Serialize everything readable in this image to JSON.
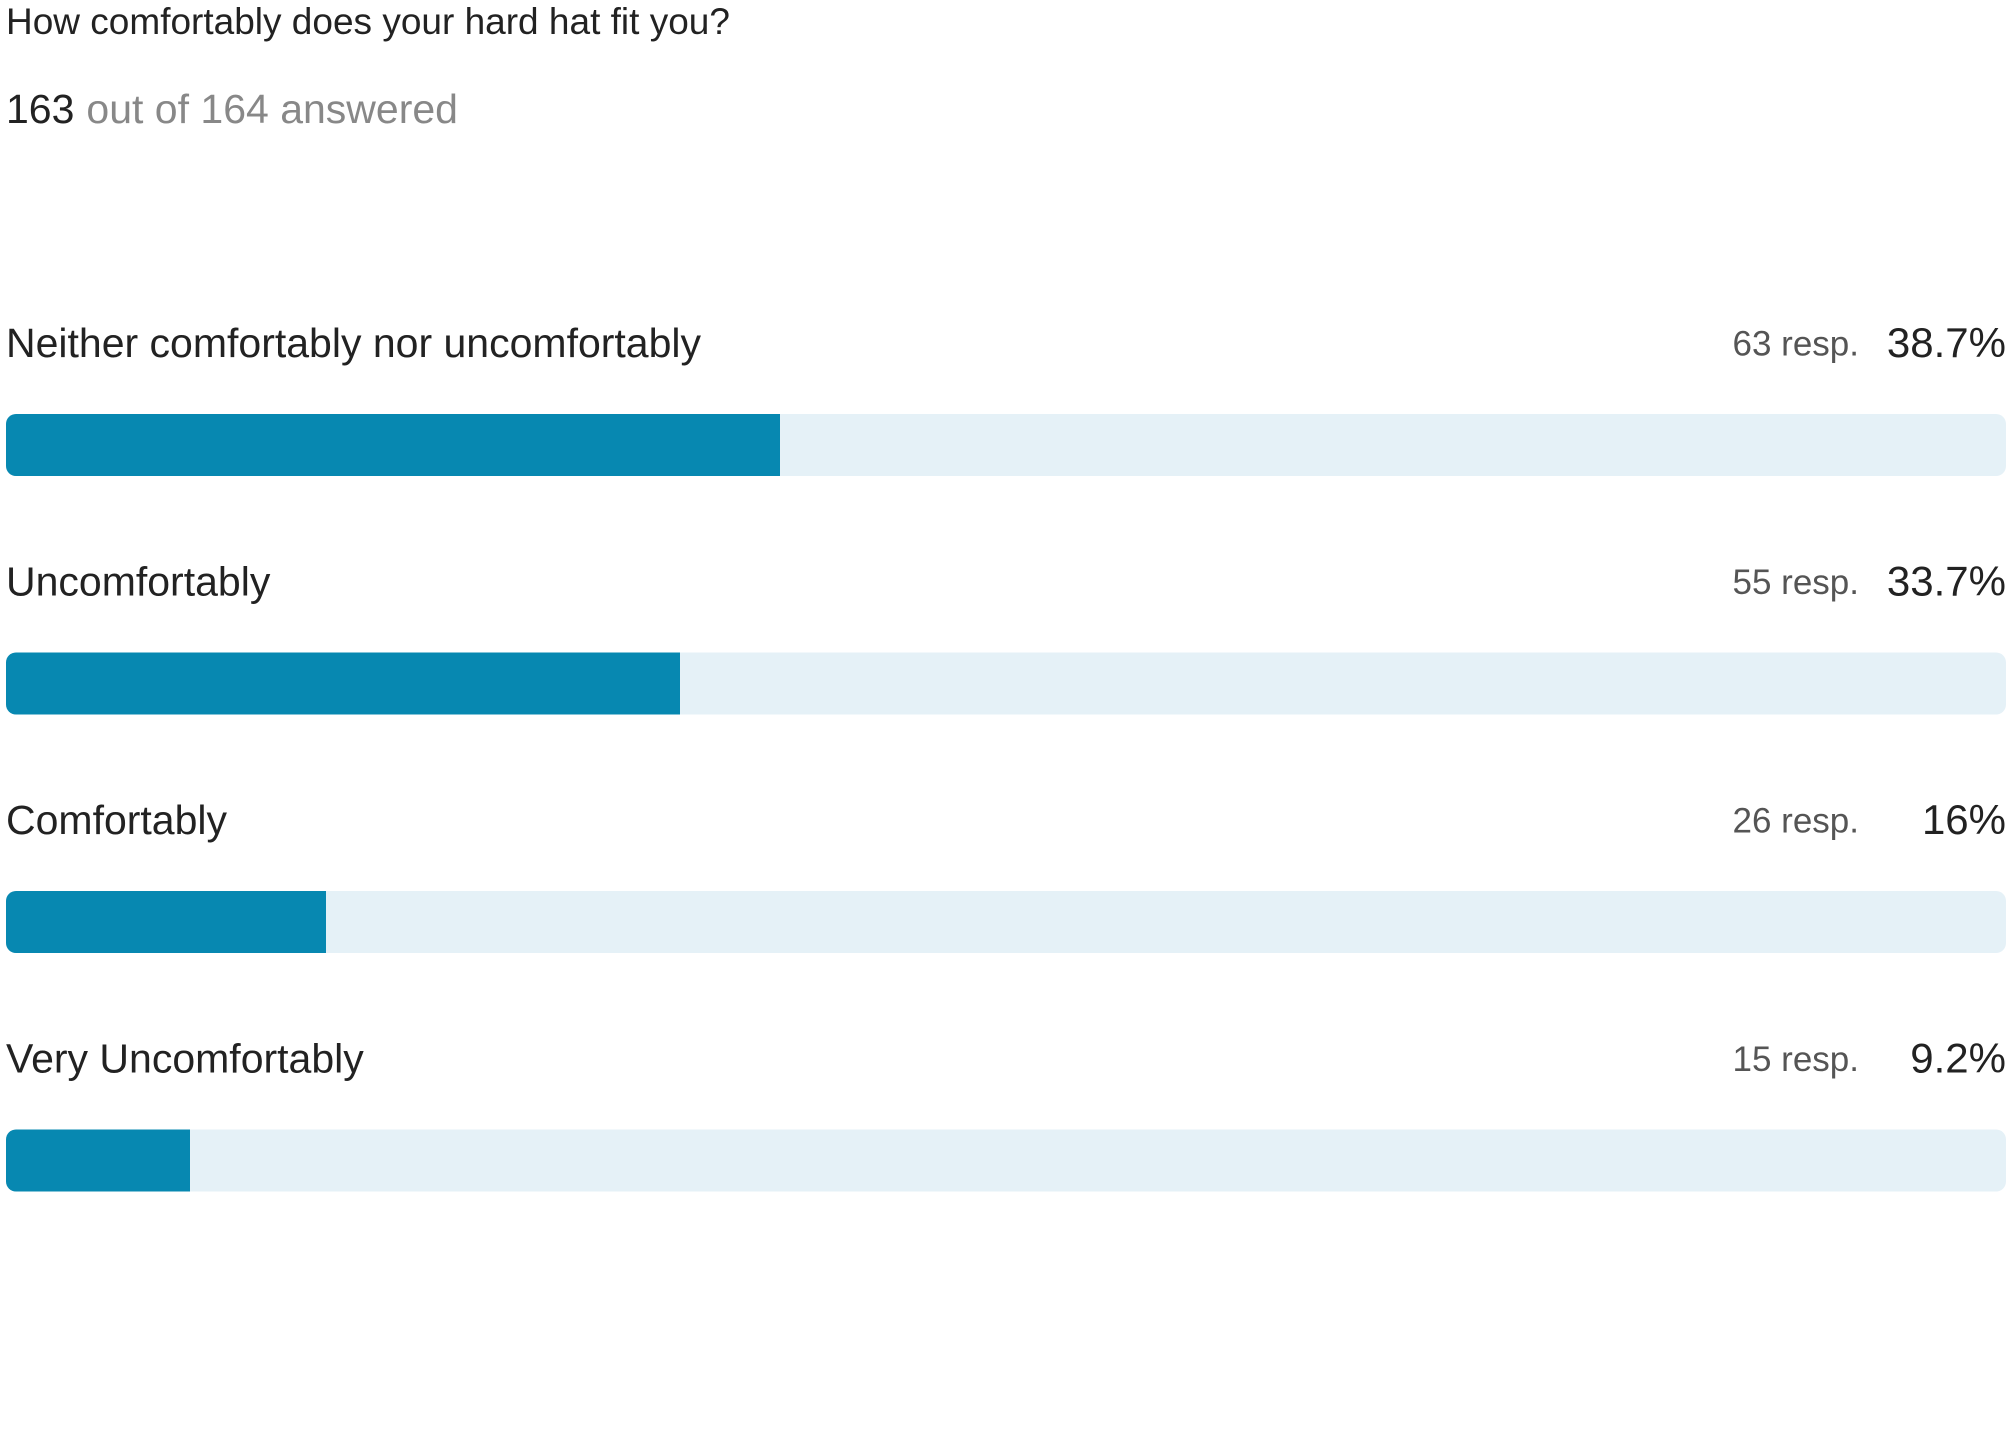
{
  "chart_data": {
    "type": "bar",
    "orientation": "horizontal",
    "title": "How comfortably does your hard hat fit you?",
    "answered": 163,
    "subtitle": "out of 164 answered",
    "categories": [
      "Neither comfortably nor uncomfortably",
      "Uncomfortably",
      "Comfortably",
      "Very Uncomfortably"
    ],
    "responses": [
      "63 resp.",
      "55 resp.",
      "26 resp.",
      "15 resp."
    ],
    "values": [
      38.7,
      33.7,
      16,
      9.2
    ],
    "value_labels": [
      "38.7%",
      "33.7%",
      "16%",
      "9.2%"
    ],
    "xlim": [
      0,
      100
    ],
    "color": "#0788b1",
    "track_color": "#e5f1f7"
  }
}
